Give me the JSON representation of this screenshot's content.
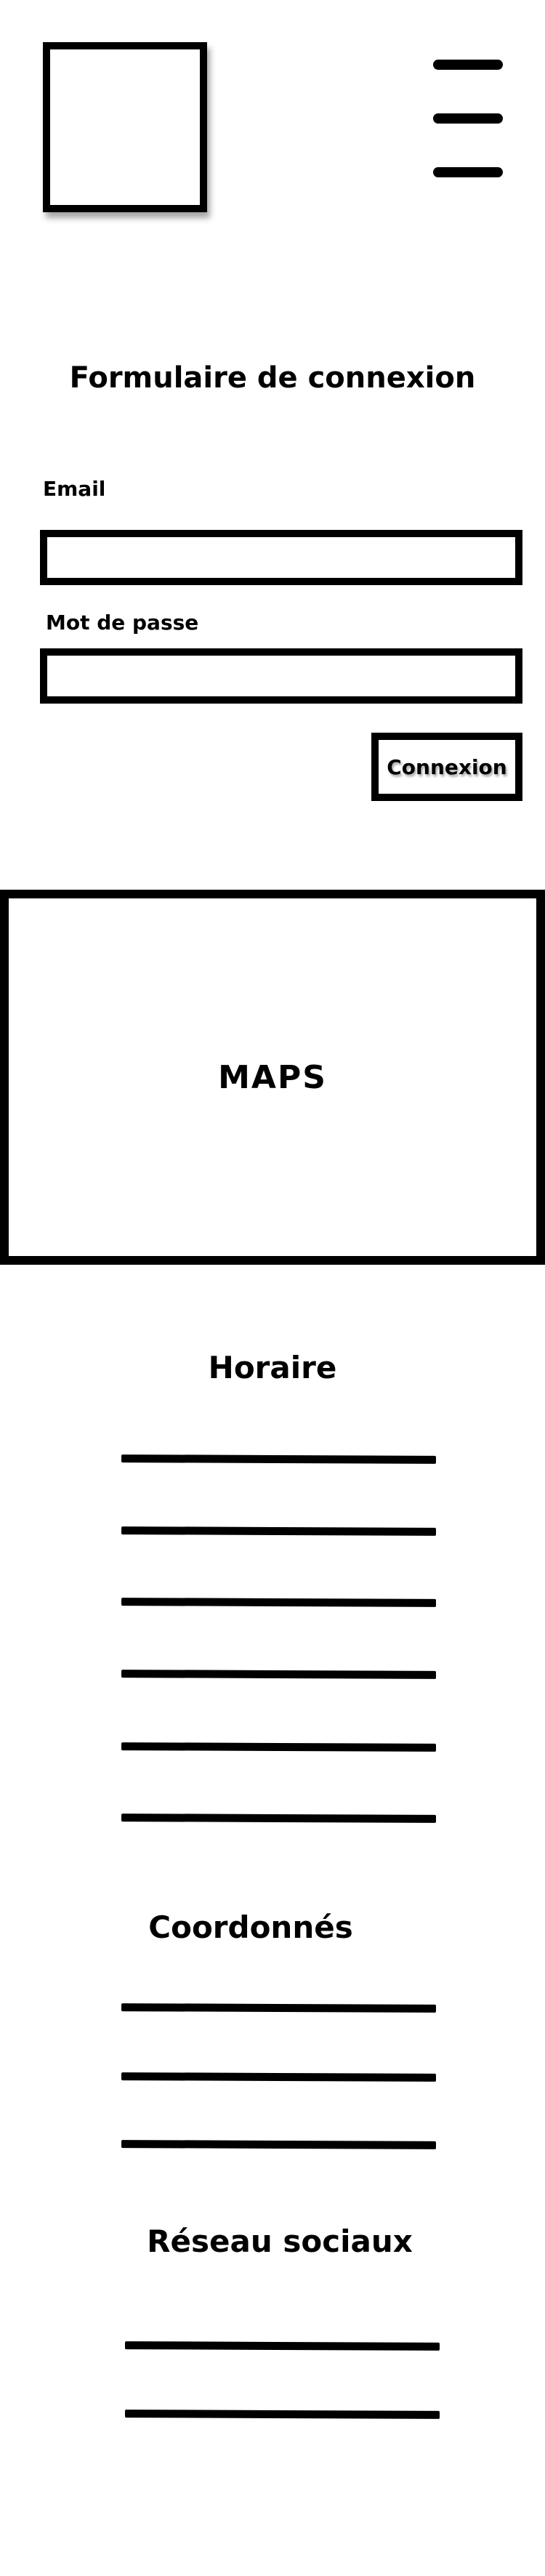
{
  "header": {
    "logo_icon": "logo-placeholder-icon",
    "menu_icon": "hamburger-menu-icon"
  },
  "login_form": {
    "title": "Formulaire de connexion",
    "email_label": "Email",
    "email_value": "",
    "password_label": "Mot de passe",
    "password_value": "",
    "submit_label": "Connexion"
  },
  "map": {
    "label": "MAPS"
  },
  "schedule": {
    "title": "Horaire",
    "line_count": 6
  },
  "contact": {
    "title": "Coordonnés",
    "line_count": 3
  },
  "social": {
    "title": "Réseau sociaux",
    "line_count": 2
  }
}
